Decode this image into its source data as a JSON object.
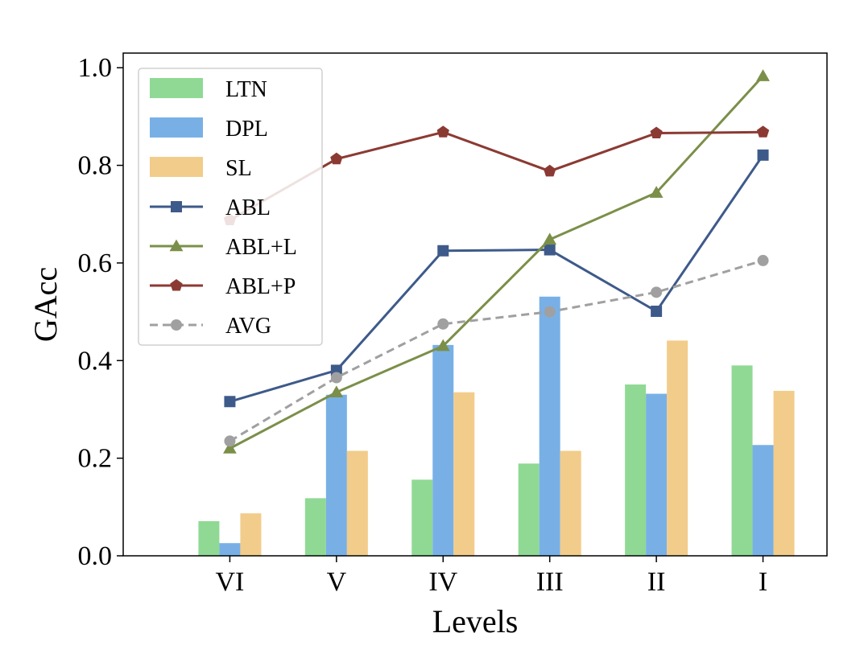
{
  "chart_data": {
    "type": "bar+line",
    "title": "",
    "xlabel": "Levels",
    "ylabel": "GAcc",
    "ylim": [
      0,
      1.0
    ],
    "yticks": [
      "0.0",
      "0.2",
      "0.4",
      "0.6",
      "0.8",
      "1.0"
    ],
    "categories": [
      "VI",
      "V",
      "IV",
      "III",
      "II",
      "I"
    ],
    "bar_series": [
      {
        "name": "LTN",
        "color": "#8fd994",
        "values": [
          0.071,
          0.118,
          0.156,
          0.189,
          0.351,
          0.39
        ]
      },
      {
        "name": "DPL",
        "color": "#78b0e6",
        "values": [
          0.026,
          0.33,
          0.432,
          0.531,
          0.332,
          0.227
        ]
      },
      {
        "name": "SL",
        "color": "#f2cc8a",
        "values": [
          0.087,
          0.215,
          0.335,
          0.215,
          0.441,
          0.338
        ]
      }
    ],
    "line_series": [
      {
        "name": "ABL",
        "color": "#3e5a8a",
        "marker": "square",
        "dashed": false,
        "values": [
          0.316,
          0.38,
          0.625,
          0.627,
          0.501,
          0.821
        ]
      },
      {
        "name": "ABL+L",
        "color": "#7b8f49",
        "marker": "triangle",
        "dashed": false,
        "values": [
          0.22,
          0.335,
          0.43,
          0.648,
          0.744,
          0.983
        ]
      },
      {
        "name": "ABL+P",
        "color": "#8b3a33",
        "marker": "pentagon",
        "dashed": false,
        "values": [
          0.688,
          0.813,
          0.868,
          0.788,
          0.866,
          0.868
        ]
      },
      {
        "name": "AVG",
        "color": "#a0a0a0",
        "marker": "circle",
        "dashed": true,
        "values": [
          0.235,
          0.365,
          0.475,
          0.5,
          0.54,
          0.605
        ]
      }
    ],
    "legend": {
      "position": "top-left",
      "entries": [
        "LTN",
        "DPL",
        "SL",
        "ABL",
        "ABL+L",
        "ABL+P",
        "AVG"
      ]
    }
  }
}
